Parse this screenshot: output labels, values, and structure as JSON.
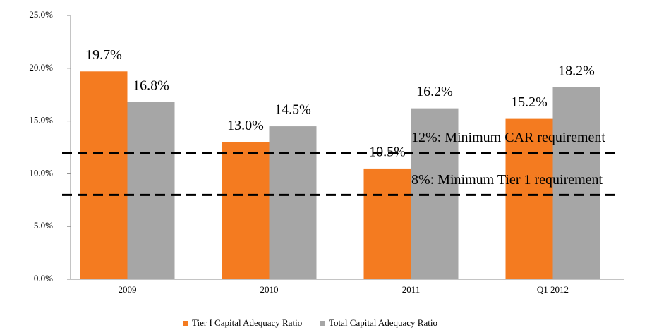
{
  "chart_data": {
    "type": "bar",
    "categories": [
      "2009",
      "2010",
      "2011",
      "Q1 2012"
    ],
    "series": [
      {
        "name": "Tier I Capital Adequacy Ratio",
        "color": "#f47b20",
        "values": [
          19.7,
          13.0,
          10.5,
          15.2
        ],
        "value_labels": [
          "19.7%",
          "13.0%",
          "10.5%",
          "15.2%"
        ]
      },
      {
        "name": "Total Capital Adequacy Ratio",
        "color": "#a6a6a6",
        "values": [
          16.8,
          14.5,
          16.2,
          18.2
        ],
        "value_labels": [
          "16.8%",
          "14.5%",
          "16.2%",
          "18.2%"
        ]
      }
    ],
    "ylim": [
      0,
      25
    ],
    "yticks": [
      {
        "value": 0,
        "label": "0.0%"
      },
      {
        "value": 5,
        "label": "5.0%"
      },
      {
        "value": 10,
        "label": "10.0%"
      },
      {
        "value": 15,
        "label": "15.0%"
      },
      {
        "value": 20,
        "label": "20.0%"
      },
      {
        "value": 25,
        "label": "25.0%"
      }
    ],
    "reference_lines": [
      {
        "value": 12,
        "label": "12%: Minimum CAR requirement"
      },
      {
        "value": 8,
        "label": "8%: Minimum Tier 1 requirement"
      }
    ],
    "legend": "bottom"
  }
}
